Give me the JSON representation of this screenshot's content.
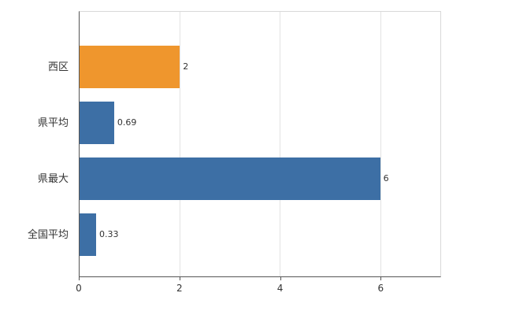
{
  "chart_data": {
    "type": "bar",
    "orientation": "horizontal",
    "title": "",
    "xlabel": "",
    "ylabel": "",
    "categories": [
      "西区",
      "県平均",
      "県最大",
      "全国平均"
    ],
    "values": [
      2,
      0.69,
      6,
      0.33
    ],
    "value_labels": [
      "2",
      "0.69",
      "6",
      "0.33"
    ],
    "bar_colors": [
      "#ef962d",
      "#3d6fa5",
      "#3d6fa5",
      "#3d6fa5"
    ],
    "x_ticks": [
      0,
      2,
      4,
      6
    ],
    "x_tick_labels": [
      "0",
      "2",
      "4",
      "6"
    ],
    "xlim": [
      0,
      7.2
    ],
    "grid": true,
    "legend_position": "none",
    "colors": {
      "background": "#ffffff",
      "gridline": "#e3e3e3",
      "plot_border": "#d9d9d9",
      "axis_line": "#555555",
      "text": "#333333"
    }
  }
}
